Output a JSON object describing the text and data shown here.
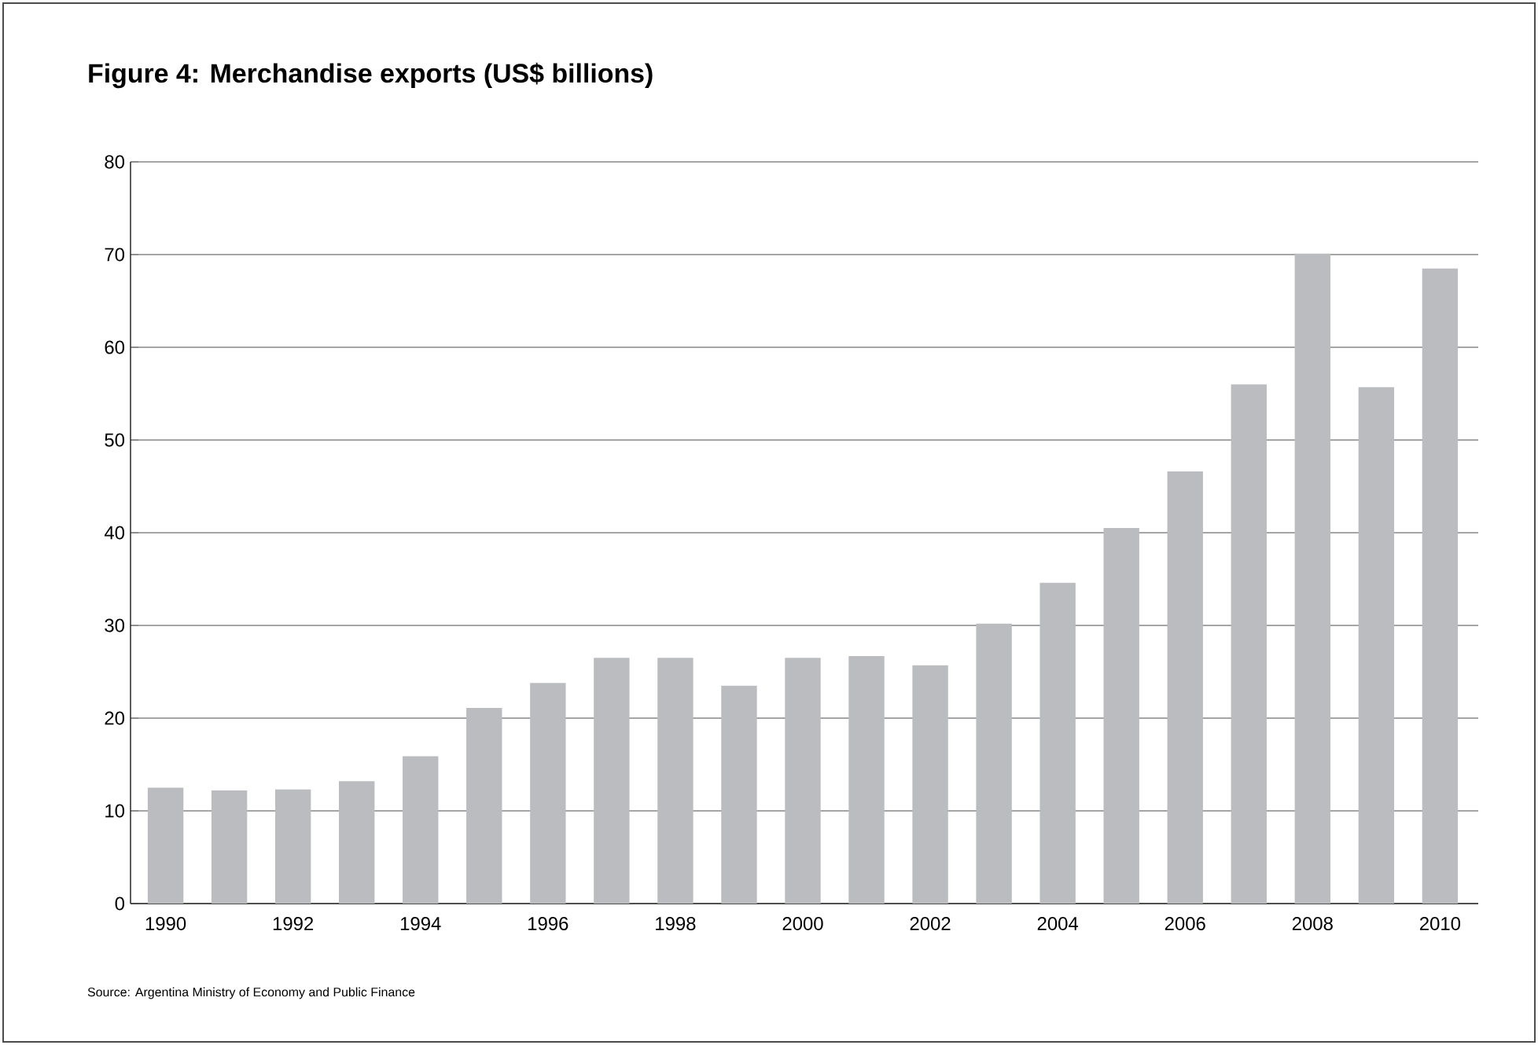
{
  "chart_data": {
    "type": "bar",
    "title": "Figure 4: Merchandise exports (US$ billions)",
    "categories": [
      "1990",
      null,
      "1992",
      null,
      "1994",
      null,
      "1996",
      null,
      "1998",
      null,
      "2000",
      null,
      "2002",
      null,
      "2004",
      null,
      "2006",
      null,
      "2008",
      null,
      "2010"
    ],
    "values": [
      12.5,
      12.2,
      12.3,
      13.2,
      15.9,
      21.1,
      23.8,
      26.5,
      26.5,
      23.5,
      26.5,
      26.7,
      25.7,
      30.2,
      34.6,
      40.5,
      46.6,
      56.0,
      70.1,
      55.7,
      68.5
    ],
    "color": "#bbbcc0",
    "ylim": [
      0,
      80
    ],
    "yticks": [
      0,
      10,
      20,
      30,
      40,
      50,
      60,
      70,
      80
    ],
    "grid": "y",
    "annotations": [
      "Source: Argentina Ministry of Economy and Public Finance"
    ]
  }
}
